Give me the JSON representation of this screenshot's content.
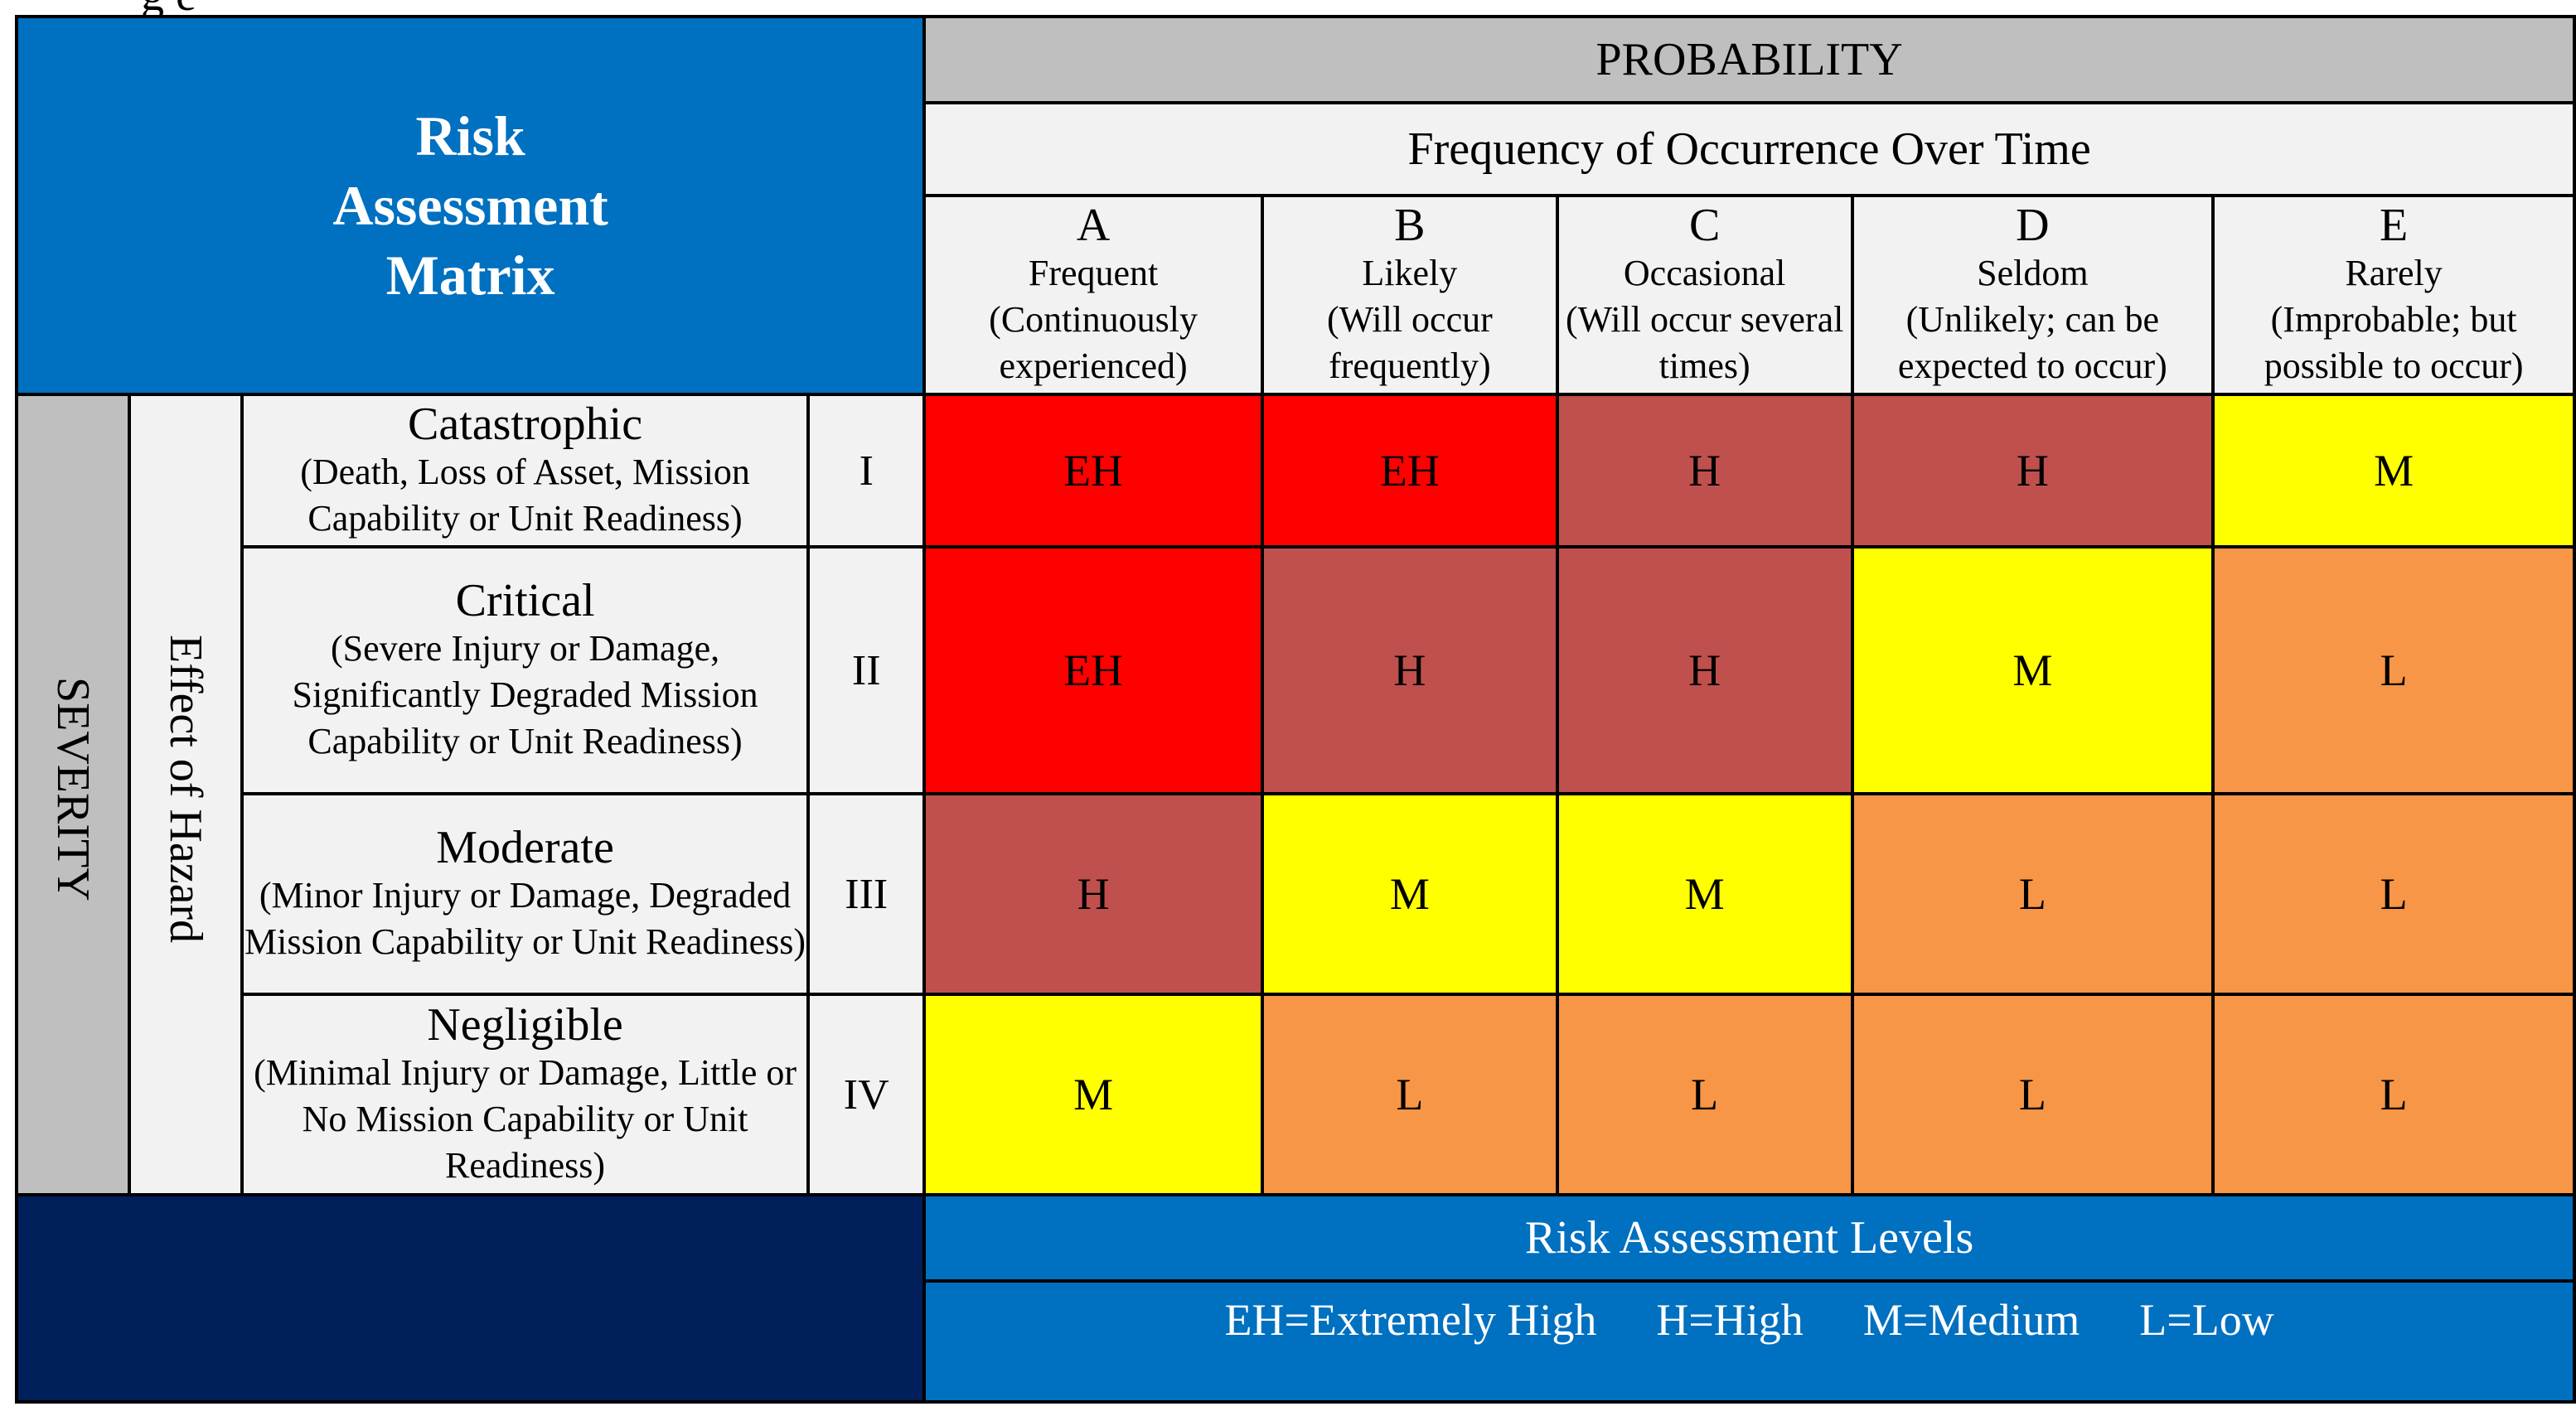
{
  "clipped_text": "g e",
  "title": "Risk Assessment Matrix",
  "probability_label": "PROBABILITY",
  "frequency_label": "Frequency of Occurrence Over Time",
  "severity_label": "SEVERITY",
  "effect_label": "Effect of Hazard",
  "columns": [
    {
      "letter": "A",
      "name": "Frequent",
      "desc": "(Continuously experienced)"
    },
    {
      "letter": "B",
      "name": "Likely",
      "desc": "(Will occur frequently)"
    },
    {
      "letter": "C",
      "name": "Occasional",
      "desc": "(Will occur several times)"
    },
    {
      "letter": "D",
      "name": "Seldom",
      "desc": "(Unlikely; can be expected to occur)"
    },
    {
      "letter": "E",
      "name": "Rarely",
      "desc": "(Improbable; but possible to occur)"
    }
  ],
  "rows": [
    {
      "name": "Catastrophic",
      "desc": "(Death, Loss of Asset, Mission Capability or Unit Readiness)",
      "roman": "I",
      "cells": [
        "EH",
        "EH",
        "H",
        "H",
        "M"
      ]
    },
    {
      "name": "Critical",
      "desc": "(Severe Injury or Damage, Significantly Degraded Mission Capability or Unit Readiness)",
      "roman": "II",
      "cells": [
        "EH",
        "H",
        "H",
        "M",
        "L"
      ]
    },
    {
      "name": "Moderate",
      "desc": "(Minor Injury or Damage, Degraded Mission Capability or Unit Readiness)",
      "roman": "III",
      "cells": [
        "H",
        "M",
        "M",
        "L",
        "L"
      ]
    },
    {
      "name": "Negligible",
      "desc": "(Minimal Injury or Damage, Little or No Mission Capability or Unit Readiness)",
      "roman": "IV",
      "cells": [
        "M",
        "L",
        "L",
        "L",
        "L"
      ]
    }
  ],
  "level_colors": {
    "EH": "#ff0000",
    "H": "#c0504d",
    "M": "#ffff00",
    "L": "#f79646"
  },
  "legend": {
    "title": "Risk Assessment Levels",
    "items": [
      "EH=Extremely High",
      "H=High",
      "M=Medium",
      "L=Low"
    ]
  }
}
